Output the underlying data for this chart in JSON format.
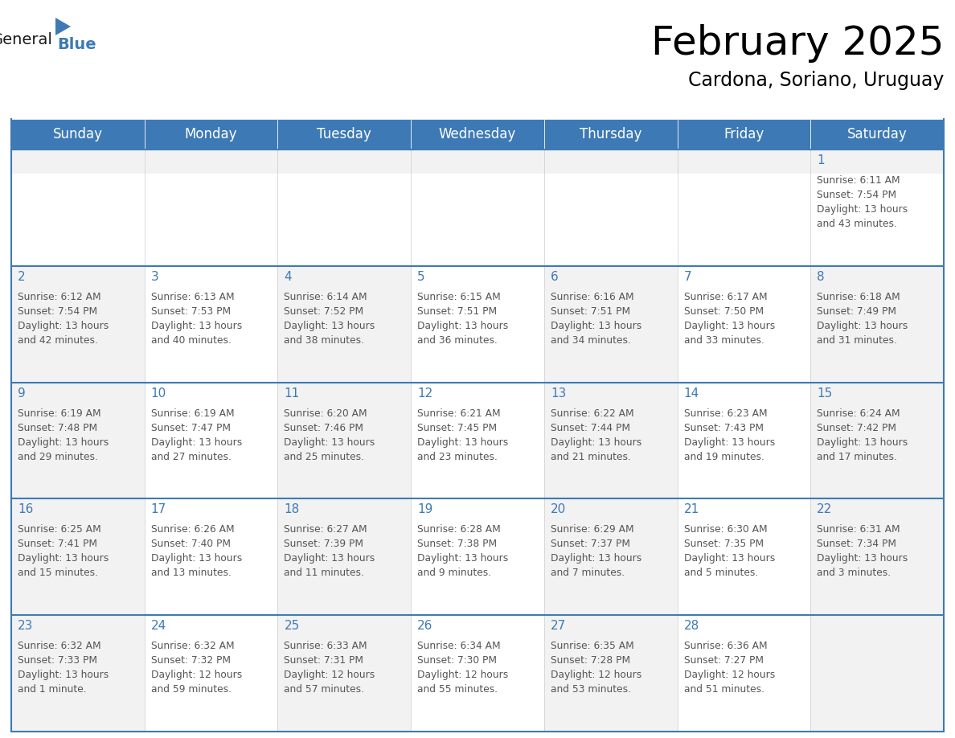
{
  "title": "February 2025",
  "subtitle": "Cardona, Soriano, Uruguay",
  "days_of_week": [
    "Sunday",
    "Monday",
    "Tuesday",
    "Wednesday",
    "Thursday",
    "Friday",
    "Saturday"
  ],
  "header_bg": "#3d7ab5",
  "header_text": "#ffffff",
  "cell_bg_odd": "#f2f2f2",
  "cell_bg_even": "#ffffff",
  "row1_top_bg": "#f2f2f2",
  "separator_color": "#3d7ab5",
  "text_color": "#555555",
  "day_num_color": "#3d7ab5",
  "logo_general_color": "#1a1a1a",
  "logo_blue_color": "#3d7ab5",
  "calendar_data": [
    [
      null,
      null,
      null,
      null,
      null,
      null,
      {
        "day": 1,
        "sunrise": "6:11 AM",
        "sunset": "7:54 PM",
        "daylight": "13 hours and 43 minutes."
      }
    ],
    [
      {
        "day": 2,
        "sunrise": "6:12 AM",
        "sunset": "7:54 PM",
        "daylight": "13 hours and 42 minutes."
      },
      {
        "day": 3,
        "sunrise": "6:13 AM",
        "sunset": "7:53 PM",
        "daylight": "13 hours and 40 minutes."
      },
      {
        "day": 4,
        "sunrise": "6:14 AM",
        "sunset": "7:52 PM",
        "daylight": "13 hours and 38 minutes."
      },
      {
        "day": 5,
        "sunrise": "6:15 AM",
        "sunset": "7:51 PM",
        "daylight": "13 hours and 36 minutes."
      },
      {
        "day": 6,
        "sunrise": "6:16 AM",
        "sunset": "7:51 PM",
        "daylight": "13 hours and 34 minutes."
      },
      {
        "day": 7,
        "sunrise": "6:17 AM",
        "sunset": "7:50 PM",
        "daylight": "13 hours and 33 minutes."
      },
      {
        "day": 8,
        "sunrise": "6:18 AM",
        "sunset": "7:49 PM",
        "daylight": "13 hours and 31 minutes."
      }
    ],
    [
      {
        "day": 9,
        "sunrise": "6:19 AM",
        "sunset": "7:48 PM",
        "daylight": "13 hours and 29 minutes."
      },
      {
        "day": 10,
        "sunrise": "6:19 AM",
        "sunset": "7:47 PM",
        "daylight": "13 hours and 27 minutes."
      },
      {
        "day": 11,
        "sunrise": "6:20 AM",
        "sunset": "7:46 PM",
        "daylight": "13 hours and 25 minutes."
      },
      {
        "day": 12,
        "sunrise": "6:21 AM",
        "sunset": "7:45 PM",
        "daylight": "13 hours and 23 minutes."
      },
      {
        "day": 13,
        "sunrise": "6:22 AM",
        "sunset": "7:44 PM",
        "daylight": "13 hours and 21 minutes."
      },
      {
        "day": 14,
        "sunrise": "6:23 AM",
        "sunset": "7:43 PM",
        "daylight": "13 hours and 19 minutes."
      },
      {
        "day": 15,
        "sunrise": "6:24 AM",
        "sunset": "7:42 PM",
        "daylight": "13 hours and 17 minutes."
      }
    ],
    [
      {
        "day": 16,
        "sunrise": "6:25 AM",
        "sunset": "7:41 PM",
        "daylight": "13 hours and 15 minutes."
      },
      {
        "day": 17,
        "sunrise": "6:26 AM",
        "sunset": "7:40 PM",
        "daylight": "13 hours and 13 minutes."
      },
      {
        "day": 18,
        "sunrise": "6:27 AM",
        "sunset": "7:39 PM",
        "daylight": "13 hours and 11 minutes."
      },
      {
        "day": 19,
        "sunrise": "6:28 AM",
        "sunset": "7:38 PM",
        "daylight": "13 hours and 9 minutes."
      },
      {
        "day": 20,
        "sunrise": "6:29 AM",
        "sunset": "7:37 PM",
        "daylight": "13 hours and 7 minutes."
      },
      {
        "day": 21,
        "sunrise": "6:30 AM",
        "sunset": "7:35 PM",
        "daylight": "13 hours and 5 minutes."
      },
      {
        "day": 22,
        "sunrise": "6:31 AM",
        "sunset": "7:34 PM",
        "daylight": "13 hours and 3 minutes."
      }
    ],
    [
      {
        "day": 23,
        "sunrise": "6:32 AM",
        "sunset": "7:33 PM",
        "daylight": "13 hours and 1 minute."
      },
      {
        "day": 24,
        "sunrise": "6:32 AM",
        "sunset": "7:32 PM",
        "daylight": "12 hours and 59 minutes."
      },
      {
        "day": 25,
        "sunrise": "6:33 AM",
        "sunset": "7:31 PM",
        "daylight": "12 hours and 57 minutes."
      },
      {
        "day": 26,
        "sunrise": "6:34 AM",
        "sunset": "7:30 PM",
        "daylight": "12 hours and 55 minutes."
      },
      {
        "day": 27,
        "sunrise": "6:35 AM",
        "sunset": "7:28 PM",
        "daylight": "12 hours and 53 minutes."
      },
      {
        "day": 28,
        "sunrise": "6:36 AM",
        "sunset": "7:27 PM",
        "daylight": "12 hours and 51 minutes."
      },
      null
    ]
  ]
}
